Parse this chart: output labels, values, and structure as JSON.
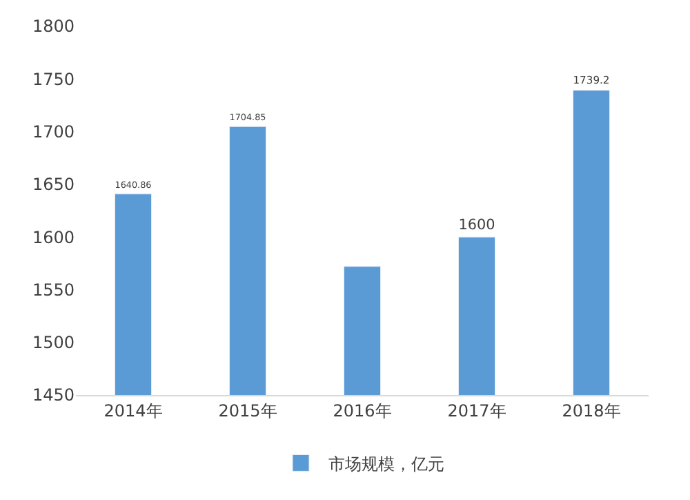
{
  "chart_data": {
    "type": "bar",
    "categories": [
      "2014年",
      "2015年",
      "2016年",
      "2017年",
      "2018年"
    ],
    "series": [
      {
        "name": "市场规模，亿元",
        "color": "#5b9bd5",
        "values": [
          1640.86,
          1704.85,
          1572,
          1600,
          1739.2
        ],
        "value_labels": [
          "1640.86",
          "1704.85",
          null,
          "1600",
          "1739.2"
        ]
      }
    ],
    "ylim": [
      1450,
      1800
    ],
    "yticks": [
      1450,
      1500,
      1550,
      1600,
      1650,
      1700,
      1750,
      1800
    ],
    "grid": false,
    "legend": "bottom"
  }
}
